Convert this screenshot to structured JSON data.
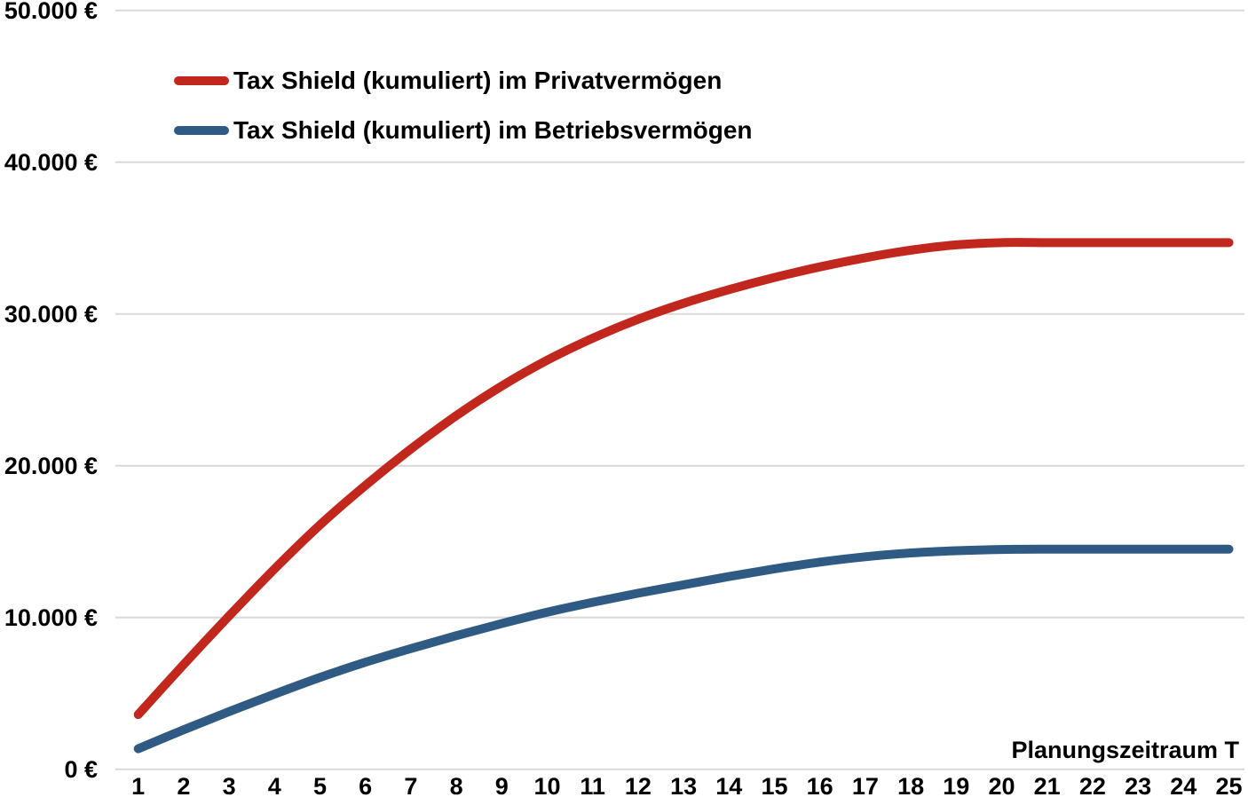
{
  "colors": {
    "background": "#ffffff",
    "gridline": "#d9d9d9",
    "text": "#000000"
  },
  "chart_data": {
    "type": "line",
    "title": "",
    "xlabel": "Planungszeitraum T",
    "ylabel": "",
    "x": [
      1,
      2,
      3,
      4,
      5,
      6,
      7,
      8,
      9,
      10,
      11,
      12,
      13,
      14,
      15,
      16,
      17,
      18,
      19,
      20,
      21,
      22,
      23,
      24,
      25
    ],
    "ylim": [
      0,
      50000
    ],
    "grid": "horizontal-only",
    "legend_position": "top-left-inside",
    "y_ticks": [
      {
        "label": "0 €",
        "value": 0
      },
      {
        "label": "10.000 €",
        "value": 10000
      },
      {
        "label": "20.000 €",
        "value": 20000
      },
      {
        "label": "30.000 €",
        "value": 30000
      },
      {
        "label": "40.000 €",
        "value": 40000
      },
      {
        "label": "50.000 €",
        "value": 50000
      }
    ],
    "series": [
      {
        "name": "Tax Shield (kumuliert) im Privatvermögen",
        "color": "#c2271d",
        "values": [
          3600,
          6900,
          10100,
          13200,
          16100,
          18700,
          21100,
          23300,
          25250,
          26950,
          28400,
          29650,
          30700,
          31600,
          32400,
          33100,
          33700,
          34200,
          34550,
          34700,
          34700,
          34700,
          34700,
          34700,
          34700
        ]
      },
      {
        "name": "Tax Shield (kumuliert) im Betriebsvermögen",
        "color": "#2e5a84",
        "values": [
          1350,
          2600,
          3800,
          4950,
          6050,
          7050,
          7950,
          8800,
          9600,
          10350,
          11000,
          11600,
          12150,
          12700,
          13200,
          13650,
          14000,
          14250,
          14400,
          14480,
          14500,
          14500,
          14500,
          14500,
          14500
        ]
      }
    ]
  }
}
